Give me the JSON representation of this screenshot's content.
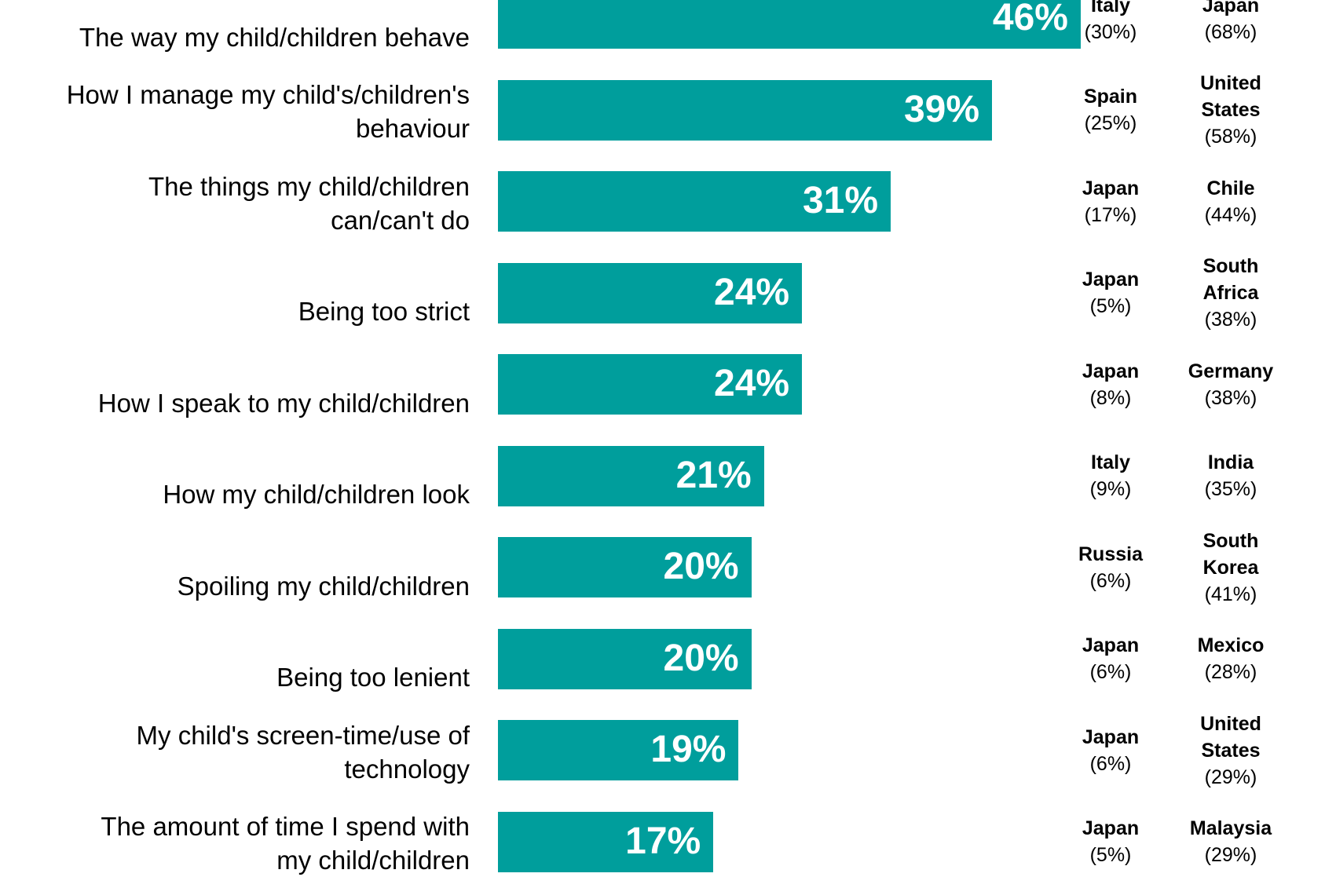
{
  "chart_data": {
    "type": "bar",
    "orientation": "horizontal",
    "title": "",
    "xlim": [
      0,
      100
    ],
    "bar_color": "#009e9c",
    "rows": [
      {
        "label": [
          "The way my child/children behave"
        ],
        "value": 46,
        "value_label": "46%",
        "low": {
          "country": [
            "Italy"
          ],
          "pct": "(30%)"
        },
        "high": {
          "country": [
            "Japan"
          ],
          "pct": "(68%)"
        }
      },
      {
        "label": [
          "How I manage my child's/children's",
          "behaviour"
        ],
        "value": 39,
        "value_label": "39%",
        "low": {
          "country": [
            "Spain"
          ],
          "pct": "(25%)"
        },
        "high": {
          "country": [
            "United",
            "States"
          ],
          "pct": "(58%)"
        }
      },
      {
        "label": [
          "The things my child/children",
          "can/can't do"
        ],
        "value": 31,
        "value_label": "31%",
        "low": {
          "country": [
            "Japan"
          ],
          "pct": "(17%)"
        },
        "high": {
          "country": [
            "Chile"
          ],
          "pct": "(44%)"
        }
      },
      {
        "label": [
          "Being too strict"
        ],
        "value": 24,
        "value_label": "24%",
        "low": {
          "country": [
            "Japan"
          ],
          "pct": "(5%)"
        },
        "high": {
          "country": [
            "South",
            "Africa"
          ],
          "pct": "(38%)"
        }
      },
      {
        "label": [
          "How I speak to my child/children"
        ],
        "value": 24,
        "value_label": "24%",
        "low": {
          "country": [
            "Japan"
          ],
          "pct": "(8%)"
        },
        "high": {
          "country": [
            "Germany"
          ],
          "pct": "(38%)"
        }
      },
      {
        "label": [
          "How my child/children look"
        ],
        "value": 21,
        "value_label": "21%",
        "low": {
          "country": [
            "Italy"
          ],
          "pct": "(9%)"
        },
        "high": {
          "country": [
            "India"
          ],
          "pct": "(35%)"
        }
      },
      {
        "label": [
          "Spoiling my child/children"
        ],
        "value": 20,
        "value_label": "20%",
        "low": {
          "country": [
            "Russia"
          ],
          "pct": "(6%)"
        },
        "high": {
          "country": [
            "South",
            "Korea"
          ],
          "pct": "(41%)"
        }
      },
      {
        "label": [
          "Being too lenient"
        ],
        "value": 20,
        "value_label": "20%",
        "low": {
          "country": [
            "Japan"
          ],
          "pct": "(6%)"
        },
        "high": {
          "country": [
            "Mexico"
          ],
          "pct": "(28%)"
        }
      },
      {
        "label": [
          "My child's screen-time/use of",
          "technology"
        ],
        "value": 19,
        "value_label": "19%",
        "low": {
          "country": [
            "Japan"
          ],
          "pct": "(6%)"
        },
        "high": {
          "country": [
            "United",
            "States"
          ],
          "pct": "(29%)"
        }
      },
      {
        "label": [
          "The amount of time I spend with",
          "my child/children"
        ],
        "value": 17,
        "value_label": "17%",
        "low": {
          "country": [
            "Japan"
          ],
          "pct": "(5%)"
        },
        "high": {
          "country": [
            "Malaysia"
          ],
          "pct": "(29%)"
        }
      }
    ]
  }
}
